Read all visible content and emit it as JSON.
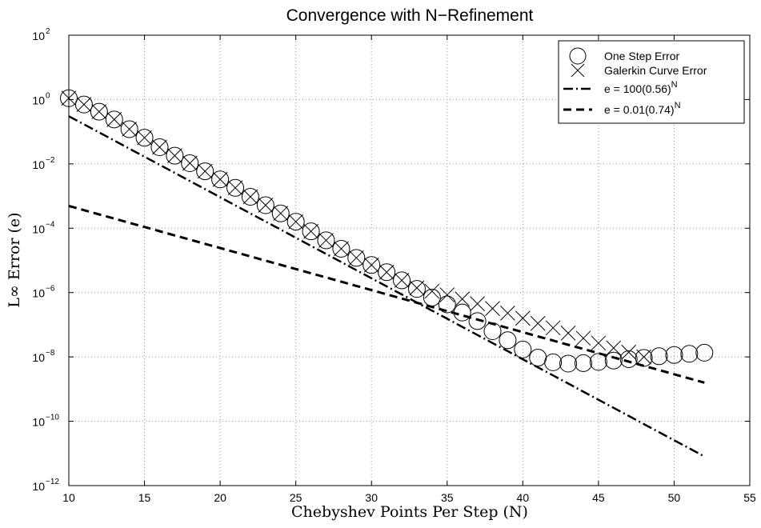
{
  "chart_data": {
    "type": "line",
    "title": "Convergence with N−Refinement",
    "xlabel": "Chebyshev Points Per Step (N)",
    "ylabel": "L∞ Error (e)",
    "xlim": [
      10,
      55
    ],
    "ylim": [
      1e-12,
      100
    ],
    "yscale": "log",
    "grid": true,
    "legend_position": "top-right",
    "xticks": [
      10,
      15,
      20,
      25,
      30,
      35,
      40,
      45,
      50,
      55
    ],
    "yticks": [
      {
        "base": "10",
        "exp": "2",
        "value": 100
      },
      {
        "base": "10",
        "exp": "0",
        "value": 1
      },
      {
        "base": "10",
        "exp": "−2",
        "value": 0.01
      },
      {
        "base": "10",
        "exp": "−4",
        "value": 0.0001
      },
      {
        "base": "10",
        "exp": "−6",
        "value": 1e-06
      },
      {
        "base": "10",
        "exp": "−8",
        "value": 1e-08
      },
      {
        "base": "10",
        "exp": "−10",
        "value": 1e-10
      },
      {
        "base": "10",
        "exp": "−12",
        "value": 1e-12
      }
    ],
    "series": [
      {
        "name": "One Step Error",
        "marker": "circle",
        "x": [
          10,
          11,
          12,
          13,
          14,
          15,
          16,
          17,
          18,
          19,
          20,
          21,
          22,
          23,
          24,
          25,
          26,
          27,
          28,
          29,
          30,
          31,
          32,
          33,
          34,
          35,
          36,
          37,
          38,
          39,
          40,
          41,
          42,
          43,
          44,
          45,
          46,
          47,
          48,
          49,
          50,
          51,
          52
        ],
        "y": [
          1.1,
          0.7,
          0.42,
          0.24,
          0.12,
          0.065,
          0.033,
          0.018,
          0.0105,
          0.0059,
          0.0033,
          0.0018,
          0.00095,
          0.00052,
          0.00029,
          0.00016,
          8e-05,
          4.2e-05,
          2.3e-05,
          1.2e-05,
          7.2e-06,
          4.3e-06,
          2.4e-06,
          1.3e-06,
          7e-07,
          4.3e-07,
          2.4e-07,
          1.3e-07,
          6.3e-08,
          3.3e-08,
          1.7e-08,
          9.5e-09,
          6.8e-09,
          6.2e-09,
          6.4e-09,
          7e-09,
          7.7e-09,
          8.5e-09,
          9.3e-09,
          1.05e-08,
          1.15e-08,
          1.25e-08,
          1.35e-08
        ]
      },
      {
        "name": "Galerkin Curve Error",
        "marker": "cross",
        "x": [
          10,
          11,
          12,
          13,
          14,
          15,
          16,
          17,
          18,
          19,
          20,
          21,
          22,
          23,
          24,
          25,
          26,
          27,
          28,
          29,
          30,
          31,
          32,
          33,
          34,
          35,
          36,
          37,
          38,
          39,
          40,
          41,
          42,
          43,
          44,
          45,
          46,
          47,
          48
        ],
        "y": [
          1.1,
          0.7,
          0.42,
          0.24,
          0.12,
          0.065,
          0.033,
          0.018,
          0.0105,
          0.0059,
          0.0033,
          0.0018,
          0.00095,
          0.00052,
          0.00029,
          0.00016,
          8e-05,
          4.2e-05,
          2.3e-05,
          1.2e-05,
          7.2e-06,
          4.3e-06,
          2.4e-06,
          1.4e-06,
          1.1e-06,
          8.5e-07,
          6.3e-07,
          4.5e-07,
          3.2e-07,
          2.3e-07,
          1.6e-07,
          1.1e-07,
          8e-08,
          5.5e-08,
          3.8e-08,
          2.7e-08,
          1.9e-08,
          1.4e-08,
          1e-08
        ]
      },
      {
        "name": "e = 100(0.56)",
        "name_exp": "N",
        "line": "dashdot",
        "formula": {
          "a": 100,
          "b": 0.56
        },
        "x": [
          10,
          52
        ]
      },
      {
        "name": "e = 0.01(0.74)",
        "name_exp": "N",
        "line": "dashed",
        "formula": {
          "a": 0.01,
          "b": 0.74
        },
        "x": [
          10,
          52
        ]
      }
    ]
  }
}
